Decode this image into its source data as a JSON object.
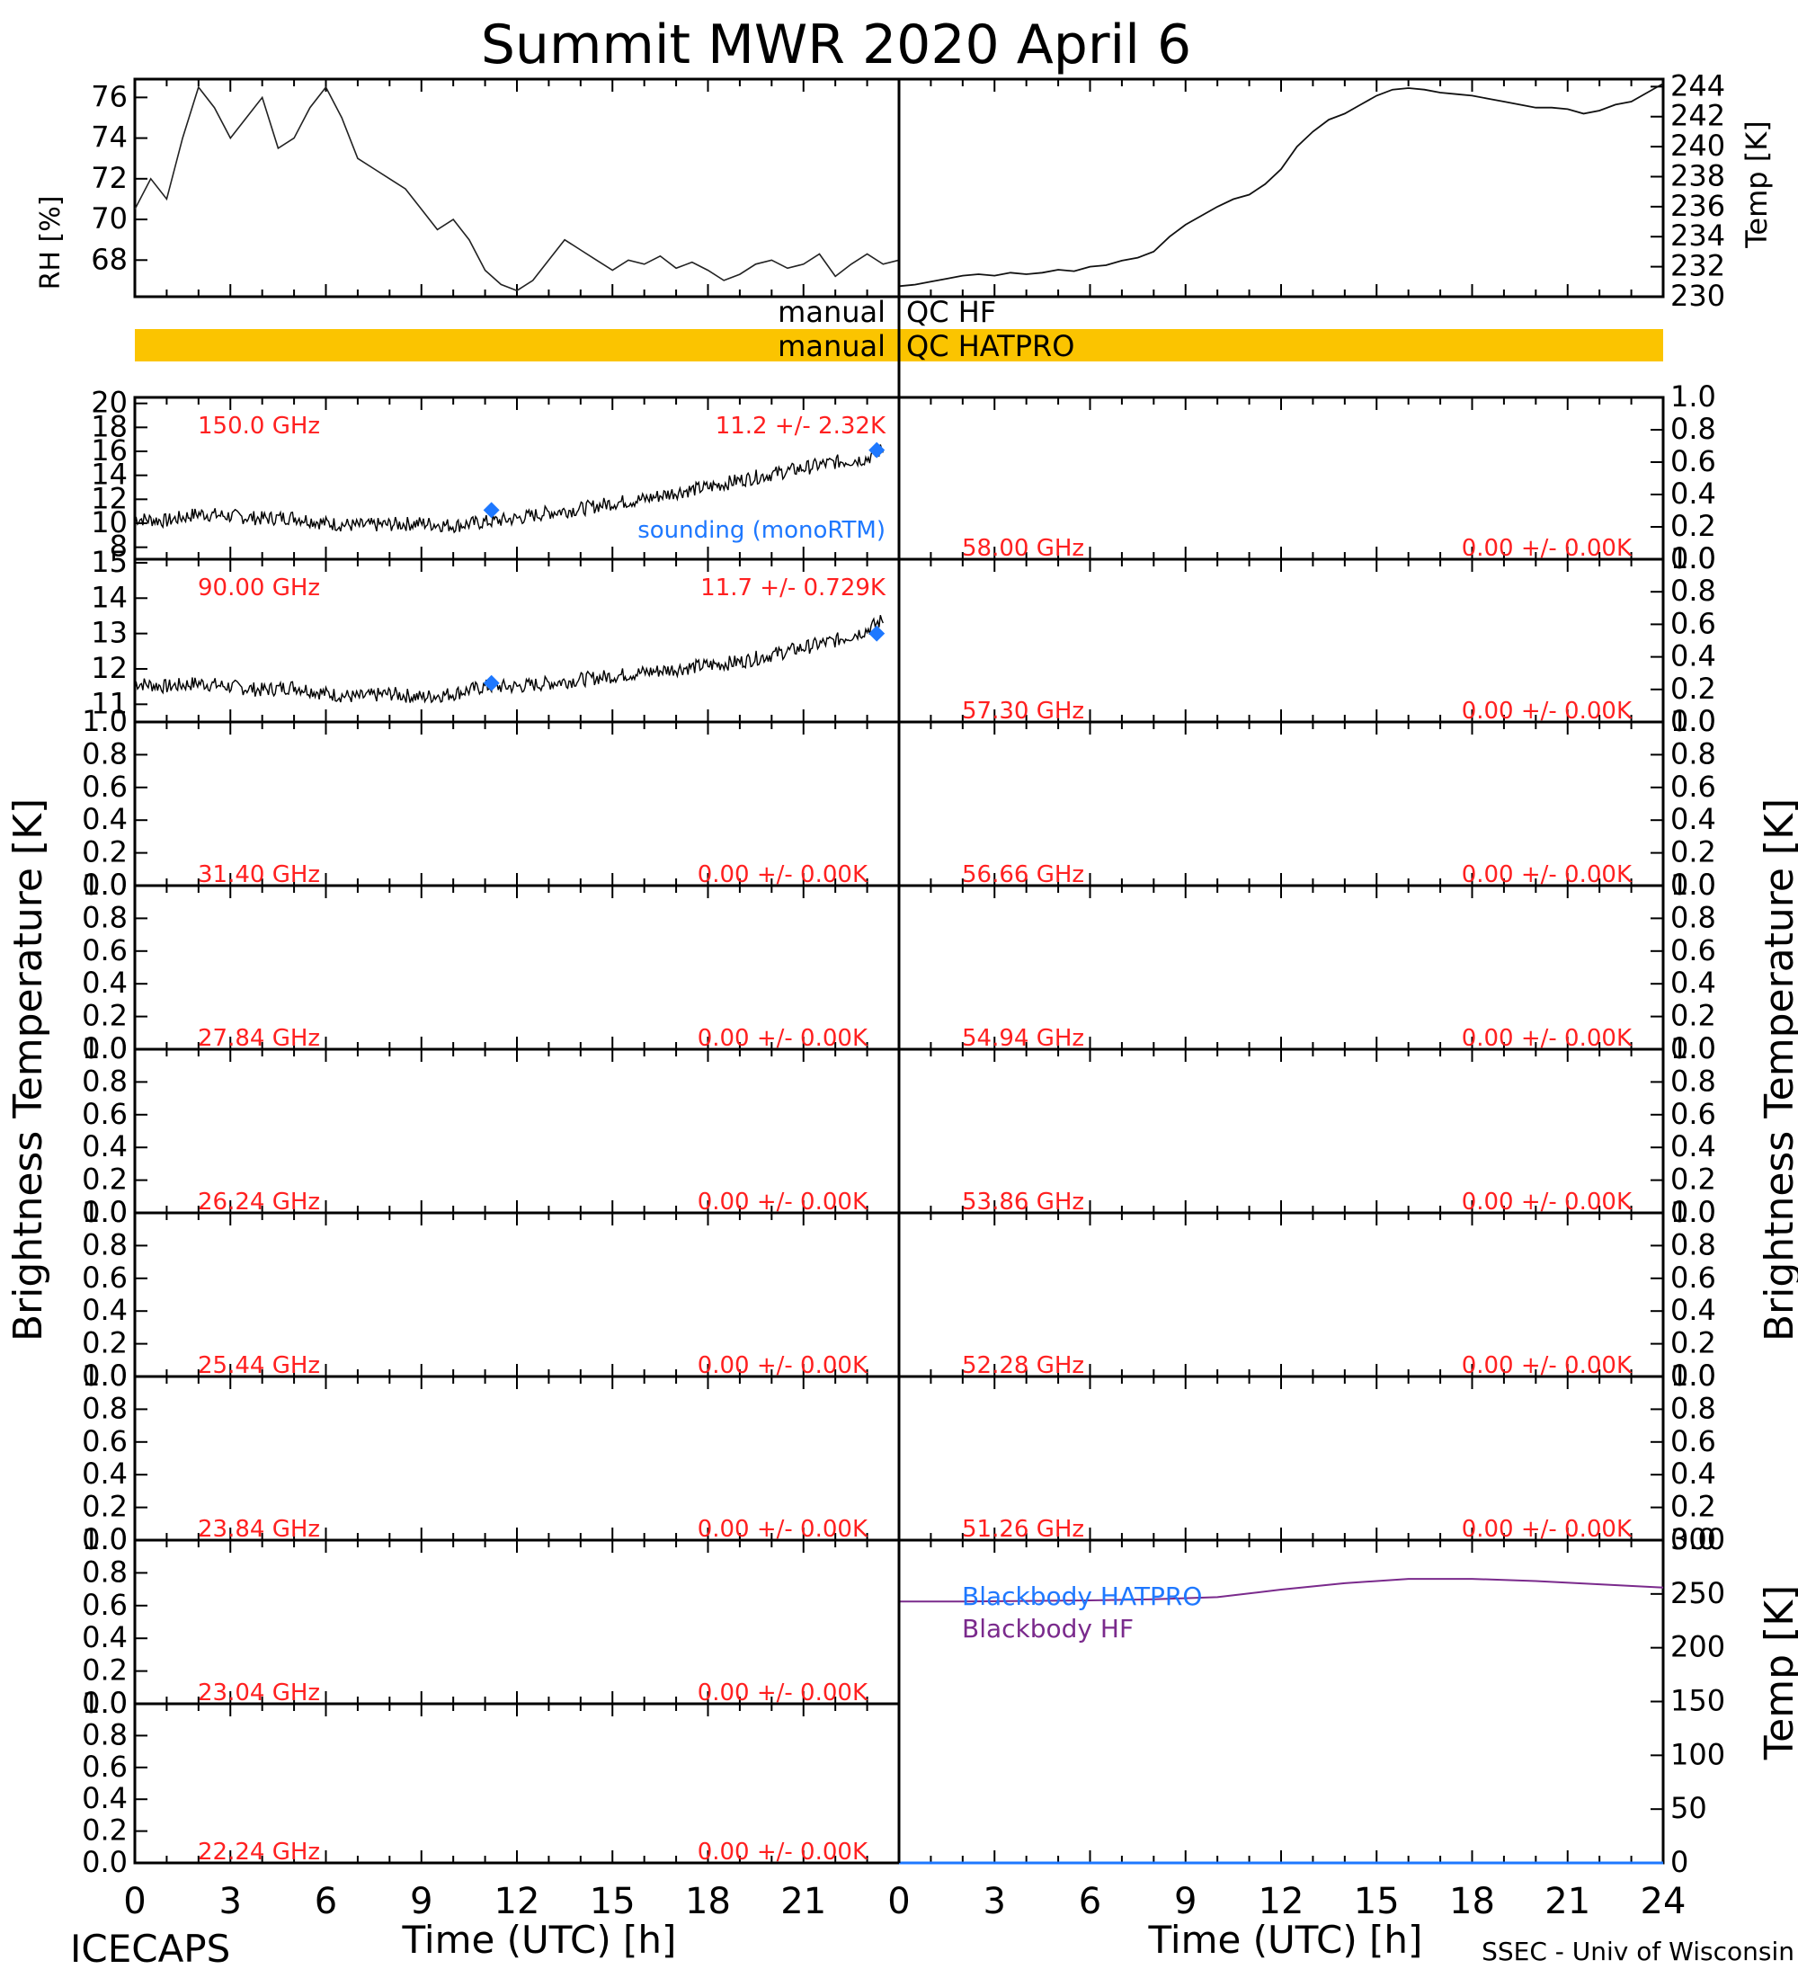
{
  "title": "Summit MWR 2020 April  6",
  "footer": {
    "left": "ICECAPS",
    "right": "SSEC - Univ of Wisconsin",
    "xlabel_left": "Time (UTC) [h]",
    "xlabel_right": "Time (UTC) [h]"
  },
  "axis_labels": {
    "rh": "RH [%]",
    "temp_top": "Temp [K]",
    "tb_left": "Brightness Temperature [K]",
    "tb_right": "Brightness Temperature [K]",
    "temp_bottom": "Temp [K]"
  },
  "qc": {
    "hf_left": "manual",
    "hf_right": "QC HF",
    "hat_left": "manual",
    "hat_right": "QC HATPRO",
    "hat_color": "#fbc400"
  },
  "legend": {
    "sounding": "sounding (monoRTM)",
    "bb_hatpro": "Blackbody HATPRO",
    "bb_hf": "Blackbody HF"
  },
  "colors": {
    "label_red": "#ff2020",
    "sounding_blue": "#1e78ff",
    "bb_purple": "#7a2a8c"
  },
  "chart_data": [
    {
      "id": "rh",
      "type": "line",
      "ylabel": "RH [%]",
      "xlim": [
        0,
        24
      ],
      "ylim": [
        66.2,
        76.9
      ],
      "yticks": [
        68,
        70,
        72,
        74,
        76
      ],
      "x": [
        0,
        0.5,
        1,
        1.5,
        2,
        2.5,
        3,
        3.5,
        4,
        4.5,
        5,
        5.5,
        6,
        6.5,
        7,
        7.5,
        8,
        8.5,
        9,
        9.5,
        10,
        10.5,
        11,
        11.5,
        12,
        12.5,
        13,
        13.5,
        14,
        14.5,
        15,
        15.5,
        16,
        16.5,
        17,
        17.5,
        18,
        18.5,
        19,
        19.5,
        20,
        20.5,
        21,
        21.5,
        22,
        22.5,
        23,
        23.5,
        24
      ],
      "y": [
        70.5,
        72,
        71,
        74,
        76.5,
        75.5,
        74,
        75,
        76,
        73.5,
        74,
        75.5,
        76.5,
        75,
        73,
        72.5,
        72,
        71.5,
        70.5,
        69.5,
        70,
        69,
        67.5,
        66.8,
        66.5,
        67,
        68,
        69,
        68.5,
        68,
        67.5,
        68,
        67.8,
        68.2,
        67.6,
        67.9,
        67.5,
        67,
        67.3,
        67.8,
        68,
        67.6,
        67.8,
        68.3,
        67.2,
        67.8,
        68.3,
        67.8,
        68
      ]
    },
    {
      "id": "temp_air",
      "type": "line",
      "ylabel": "Temp [K]",
      "xlim": [
        0,
        24
      ],
      "ylim": [
        230,
        244.5
      ],
      "yticks": [
        230,
        232,
        234,
        236,
        238,
        240,
        242,
        244
      ],
      "x": [
        0,
        0.5,
        1,
        1.5,
        2,
        2.5,
        3,
        3.5,
        4,
        4.5,
        5,
        5.5,
        6,
        6.5,
        7,
        7.5,
        8,
        8.5,
        9,
        9.5,
        10,
        10.5,
        11,
        11.5,
        12,
        12.5,
        13,
        13.5,
        14,
        14.5,
        15,
        15.5,
        16,
        16.5,
        17,
        17.5,
        18,
        18.5,
        19,
        19.5,
        20,
        20.5,
        21,
        21.5,
        22,
        22.5,
        23,
        23.5,
        24
      ],
      "y": [
        230.7,
        230.8,
        231,
        231.2,
        231.4,
        231.5,
        231.4,
        231.6,
        231.5,
        231.6,
        231.8,
        231.7,
        232,
        232.1,
        232.4,
        232.6,
        233,
        234,
        234.8,
        235.4,
        236,
        236.5,
        236.8,
        237.5,
        238.5,
        240,
        241,
        241.8,
        242.2,
        242.8,
        243.4,
        243.8,
        243.9,
        243.8,
        243.6,
        243.5,
        243.4,
        243.2,
        243,
        242.8,
        242.6,
        242.6,
        242.5,
        242.2,
        242.4,
        242.8,
        243,
        243.6,
        244.2
      ]
    },
    {
      "id": "tb_150",
      "type": "line",
      "label": "150.0 GHz",
      "stat": "11.2 +/-  2.32K",
      "xlim": [
        0,
        24
      ],
      "ylim": [
        7,
        20.5
      ],
      "yticks": [
        8,
        10,
        12,
        14,
        16,
        18,
        20
      ],
      "x": [
        0,
        1,
        2,
        3,
        4,
        5,
        6,
        7,
        8,
        9,
        10,
        11,
        12,
        13,
        14,
        15,
        16,
        17,
        18,
        19,
        20,
        21,
        22,
        23,
        23.5
      ],
      "y": [
        10.4,
        10.2,
        10.8,
        10.6,
        10.4,
        10.5,
        10.0,
        9.8,
        9.9,
        10.0,
        9.8,
        10.1,
        10.4,
        10.9,
        11.2,
        11.7,
        12.0,
        12.6,
        13.0,
        13.6,
        14.1,
        14.6,
        15.1,
        15.4,
        16.2
      ],
      "sounding_x": [
        11.2,
        23.3
      ],
      "sounding_y": [
        11.1,
        16.1
      ]
    },
    {
      "id": "tb_90",
      "type": "line",
      "label": "90.00 GHz",
      "stat": "11.7 +/- 0.729K",
      "xlim": [
        0,
        24
      ],
      "ylim": [
        10.5,
        15.1
      ],
      "yticks": [
        11,
        12,
        13,
        14,
        15
      ],
      "x": [
        0,
        1,
        2,
        3,
        4,
        5,
        6,
        7,
        8,
        9,
        10,
        11,
        12,
        13,
        14,
        15,
        16,
        17,
        18,
        19,
        20,
        21,
        22,
        23,
        23.5
      ],
      "y": [
        11.6,
        11.5,
        11.6,
        11.5,
        11.4,
        11.5,
        11.3,
        11.2,
        11.3,
        11.2,
        11.3,
        11.5,
        11.5,
        11.6,
        11.7,
        11.8,
        11.9,
        12.0,
        12.1,
        12.2,
        12.4,
        12.6,
        12.8,
        13.1,
        13.4
      ],
      "sounding_x": [
        11.2,
        23.3
      ],
      "sounding_y": [
        11.6,
        13.0
      ]
    },
    {
      "id": "bb_temp",
      "type": "line",
      "ylabel": "Temp [K]",
      "xlim": [
        0,
        24
      ],
      "ylim": [
        0,
        300
      ],
      "yticks": [
        0,
        50,
        100,
        150,
        200,
        250,
        300
      ],
      "x": [
        0,
        2,
        4,
        6,
        8,
        10,
        12,
        14,
        16,
        18,
        20,
        22,
        24
      ],
      "series": [
        {
          "name": "Blackbody HF",
          "values": [
            243,
            243,
            243.5,
            244,
            245,
            247,
            254,
            260,
            264,
            264,
            262,
            259,
            256
          ]
        },
        {
          "name": "Blackbody HATPRO",
          "values": [
            0,
            0,
            0,
            0,
            0,
            0,
            0,
            0,
            0,
            0,
            0,
            0,
            0
          ]
        }
      ]
    }
  ],
  "empty_panels": [
    {
      "col": "left",
      "label": "31.40 GHz",
      "stat": "0.00 +/-  0.00K"
    },
    {
      "col": "left",
      "label": "27.84 GHz",
      "stat": "0.00 +/-  0.00K"
    },
    {
      "col": "left",
      "label": "26.24 GHz",
      "stat": "0.00 +/-  0.00K"
    },
    {
      "col": "left",
      "label": "25.44 GHz",
      "stat": "0.00 +/-  0.00K"
    },
    {
      "col": "left",
      "label": "23.84 GHz",
      "stat": "0.00 +/-  0.00K"
    },
    {
      "col": "left",
      "label": "23.04 GHz",
      "stat": "0.00 +/-  0.00K"
    },
    {
      "col": "left",
      "label": "22.24 GHz",
      "stat": "0.00 +/-  0.00K"
    },
    {
      "col": "right",
      "label": "58.00 GHz",
      "stat": "0.00 +/-  0.00K"
    },
    {
      "col": "right",
      "label": "57.30 GHz",
      "stat": "0.00 +/-  0.00K"
    },
    {
      "col": "right",
      "label": "56.66 GHz",
      "stat": "0.00 +/-  0.00K"
    },
    {
      "col": "right",
      "label": "54.94 GHz",
      "stat": "0.00 +/-  0.00K"
    },
    {
      "col": "right",
      "label": "53.86 GHz",
      "stat": "0.00 +/-  0.00K"
    },
    {
      "col": "right",
      "label": "52.28 GHz",
      "stat": "0.00 +/-  0.00K"
    },
    {
      "col": "right",
      "label": "51.26 GHz",
      "stat": "0.00 +/-  0.00K"
    }
  ],
  "empty_yticks": [
    "0.0",
    "0.2",
    "0.4",
    "0.6",
    "0.8",
    "1.0"
  ],
  "x_ticks": [
    "0",
    "3",
    "6",
    "9",
    "12",
    "15",
    "18",
    "21",
    "24"
  ]
}
